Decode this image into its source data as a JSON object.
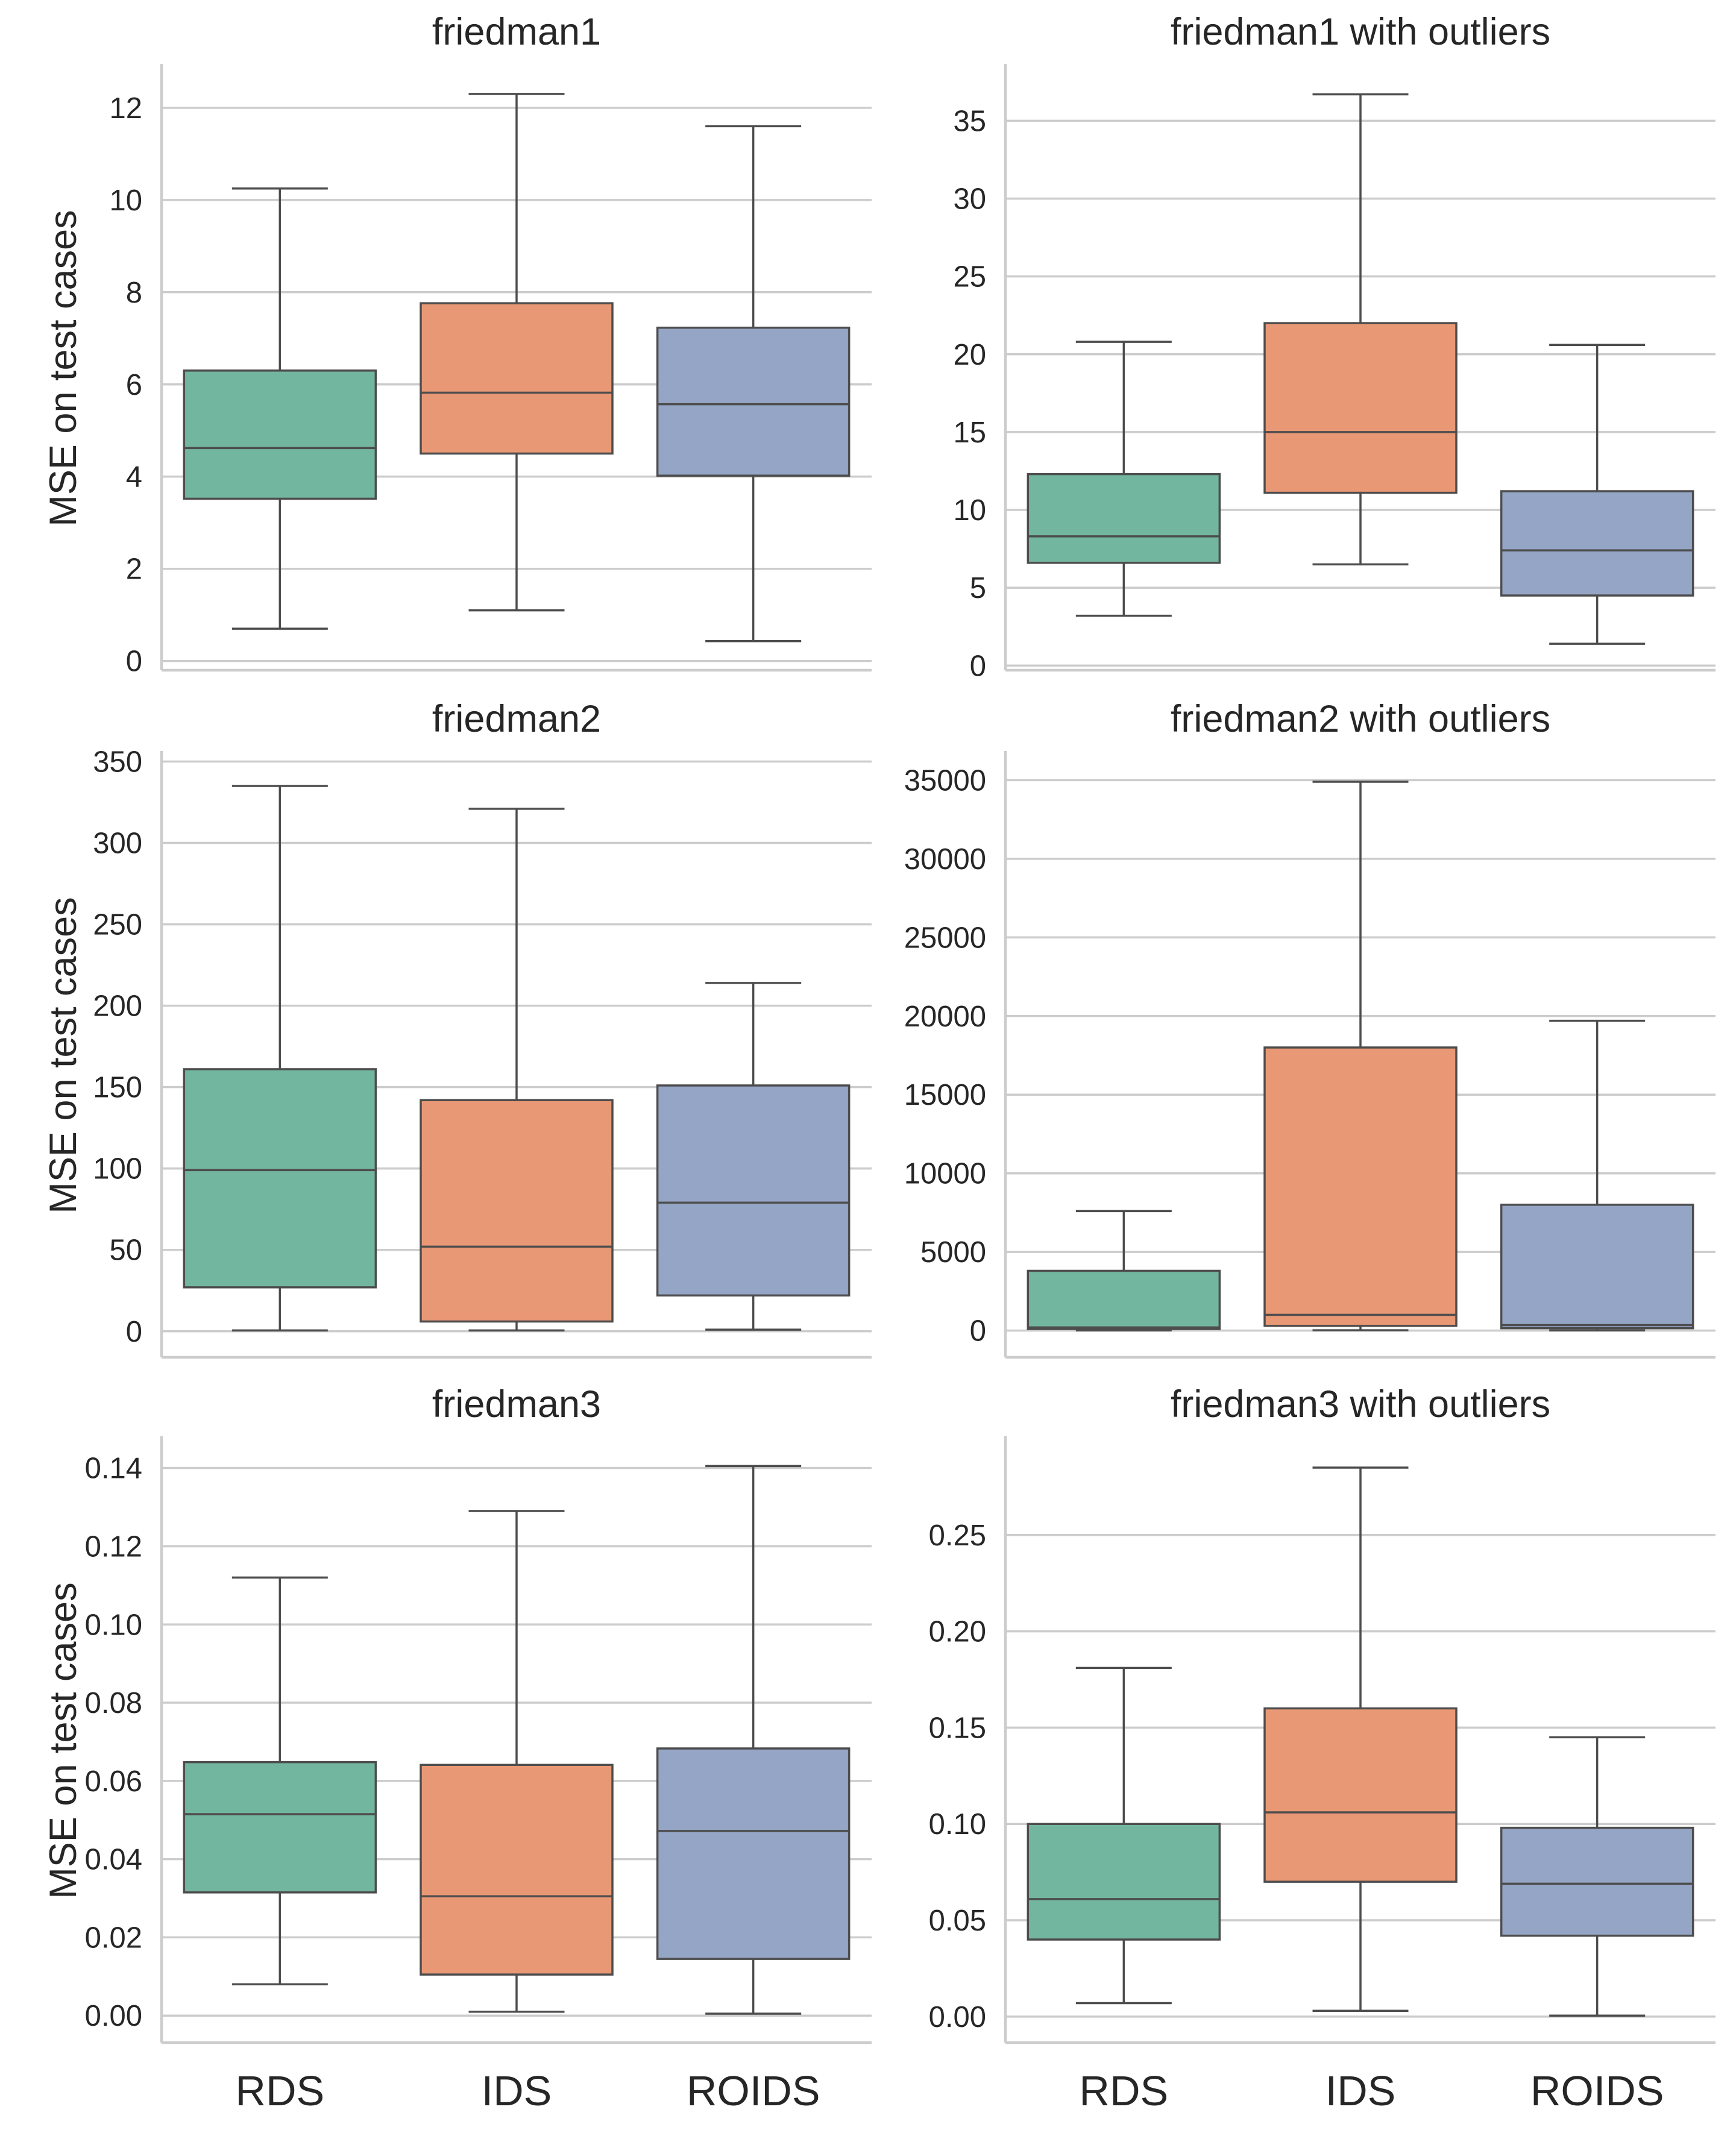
{
  "chart_data": [
    {
      "type": "box",
      "title": "friedman1",
      "ylabel": "MSE on test cases",
      "categories": [
        "RDS",
        "IDS",
        "ROIDS"
      ],
      "ylim": [
        -0.2,
        12.9
      ],
      "yticks": [
        "0",
        "2",
        "4",
        "6",
        "8",
        "10",
        "12"
      ],
      "boxes": [
        {
          "whislo": 0.7,
          "q1": 3.52,
          "med": 4.62,
          "q3": 6.3,
          "whishi": 10.25
        },
        {
          "whislo": 1.1,
          "q1": 4.5,
          "med": 5.82,
          "q3": 7.76,
          "whishi": 12.3
        },
        {
          "whislo": 0.43,
          "q1": 4.02,
          "med": 5.57,
          "q3": 7.23,
          "whishi": 11.6
        }
      ]
    },
    {
      "type": "box",
      "title": "friedman1 with outliers",
      "ylabel": "",
      "categories": [
        "RDS",
        "IDS",
        "ROIDS"
      ],
      "ylim": [
        -0.3,
        38.5
      ],
      "yticks": [
        "0",
        "5",
        "10",
        "15",
        "20",
        "25",
        "30",
        "35"
      ],
      "boxes": [
        {
          "whislo": 3.2,
          "q1": 6.6,
          "med": 8.3,
          "q3": 12.3,
          "whishi": 20.8
        },
        {
          "whislo": 6.5,
          "q1": 11.1,
          "med": 15.0,
          "q3": 22.0,
          "whishi": 36.7
        },
        {
          "whislo": 1.4,
          "q1": 4.5,
          "med": 7.4,
          "q3": 11.2,
          "whishi": 20.6
        }
      ]
    },
    {
      "type": "box",
      "title": "friedman2",
      "ylabel": "MSE on test cases",
      "categories": [
        "RDS",
        "IDS",
        "ROIDS"
      ],
      "ylim": [
        -16,
        355
      ],
      "yticks": [
        "0",
        "50",
        "100",
        "150",
        "200",
        "250",
        "300",
        "350"
      ],
      "boxes": [
        {
          "whislo": 0.5,
          "q1": 27,
          "med": 99,
          "q3": 161,
          "whishi": 335
        },
        {
          "whislo": 0.5,
          "q1": 6,
          "med": 52,
          "q3": 142,
          "whishi": 321
        },
        {
          "whislo": 1,
          "q1": 22,
          "med": 79,
          "q3": 151,
          "whishi": 214
        }
      ]
    },
    {
      "type": "box",
      "title": "friedman2 with outliers",
      "ylabel": "",
      "categories": [
        "RDS",
        "IDS",
        "ROIDS"
      ],
      "ylim": [
        -1700,
        36700
      ],
      "yticks": [
        "0",
        "5000",
        "10000",
        "15000",
        "20000",
        "25000",
        "30000",
        "35000"
      ],
      "boxes": [
        {
          "whislo": 10,
          "q1": 100,
          "med": 200,
          "q3": 3800,
          "whishi": 7600
        },
        {
          "whislo": 20,
          "q1": 300,
          "med": 1000,
          "q3": 18000,
          "whishi": 34900
        },
        {
          "whislo": 10,
          "q1": 150,
          "med": 350,
          "q3": 8000,
          "whishi": 19700
        }
      ]
    },
    {
      "type": "box",
      "title": "friedman3",
      "ylabel": "MSE on test cases",
      "categories": [
        "RDS",
        "IDS",
        "ROIDS"
      ],
      "ylim": [
        -0.0069,
        0.1475
      ],
      "yticks": [
        "0.00",
        "0.02",
        "0.04",
        "0.06",
        "0.08",
        "0.10",
        "0.12",
        "0.14"
      ],
      "boxes": [
        {
          "whislo": 0.008,
          "q1": 0.0315,
          "med": 0.0515,
          "q3": 0.0648,
          "whishi": 0.112
        },
        {
          "whislo": 0.001,
          "q1": 0.0105,
          "med": 0.0305,
          "q3": 0.0641,
          "whishi": 0.129
        },
        {
          "whislo": 0.0005,
          "q1": 0.0145,
          "med": 0.0472,
          "q3": 0.0683,
          "whishi": 0.1405
        }
      ]
    },
    {
      "type": "box",
      "title": "friedman3 with outliers",
      "ylabel": "",
      "categories": [
        "RDS",
        "IDS",
        "ROIDS"
      ],
      "ylim": [
        -0.0135,
        0.3
      ],
      "yticks": [
        "0.00",
        "0.05",
        "0.10",
        "0.15",
        "0.20",
        "0.25"
      ],
      "boxes": [
        {
          "whislo": 0.007,
          "q1": 0.04,
          "med": 0.061,
          "q3": 0.1,
          "whishi": 0.181
        },
        {
          "whislo": 0.003,
          "q1": 0.07,
          "med": 0.106,
          "q3": 0.16,
          "whishi": 0.285
        },
        {
          "whislo": 0.0005,
          "q1": 0.042,
          "med": 0.069,
          "q3": 0.098,
          "whishi": 0.145
        }
      ]
    }
  ],
  "colors": [
    "#73b69f",
    "#e99875",
    "#95a5c6"
  ]
}
